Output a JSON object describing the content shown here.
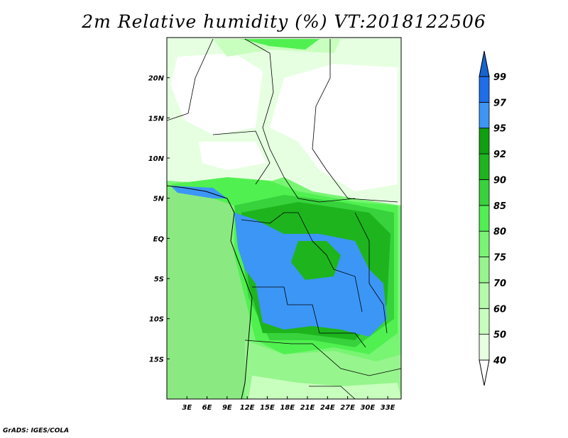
{
  "title": "2m Relative humidity (%) VT:2018122506",
  "credit": "GrADS: IGES/COLA",
  "map": {
    "lon_range": [
      0,
      35
    ],
    "lat_range": [
      -20,
      25
    ],
    "lon_ticks": [
      {
        "v": 3,
        "label": "3E"
      },
      {
        "v": 6,
        "label": "6E"
      },
      {
        "v": 9,
        "label": "9E"
      },
      {
        "v": 12,
        "label": "12E"
      },
      {
        "v": 15,
        "label": "15E"
      },
      {
        "v": 18,
        "label": "18E"
      },
      {
        "v": 21,
        "label": "21E"
      },
      {
        "v": 24,
        "label": "24E"
      },
      {
        "v": 27,
        "label": "27E"
      },
      {
        "v": 30,
        "label": "30E"
      },
      {
        "v": 33,
        "label": "33E"
      }
    ],
    "lat_ticks": [
      {
        "v": 20,
        "label": "20N"
      },
      {
        "v": 15,
        "label": "15N"
      },
      {
        "v": 10,
        "label": "10N"
      },
      {
        "v": 5,
        "label": "5N"
      },
      {
        "v": 0,
        "label": "EQ"
      },
      {
        "v": -5,
        "label": "5S"
      },
      {
        "v": -10,
        "label": "10S"
      },
      {
        "v": -15,
        "label": "15S"
      }
    ]
  },
  "colorbar": {
    "levels": [
      "40",
      "50",
      "60",
      "70",
      "75",
      "80",
      "85",
      "90",
      "92",
      "95",
      "97",
      "99"
    ],
    "colors": [
      "#ffffff",
      "#e6ffe1",
      "#c8ffbe",
      "#b4faaa",
      "#96f58c",
      "#78f573",
      "#50f050",
      "#37d23c",
      "#1eb41e",
      "#0fa00f",
      "#3c96f5",
      "#1e6eeb",
      "#1464d2"
    ]
  }
}
